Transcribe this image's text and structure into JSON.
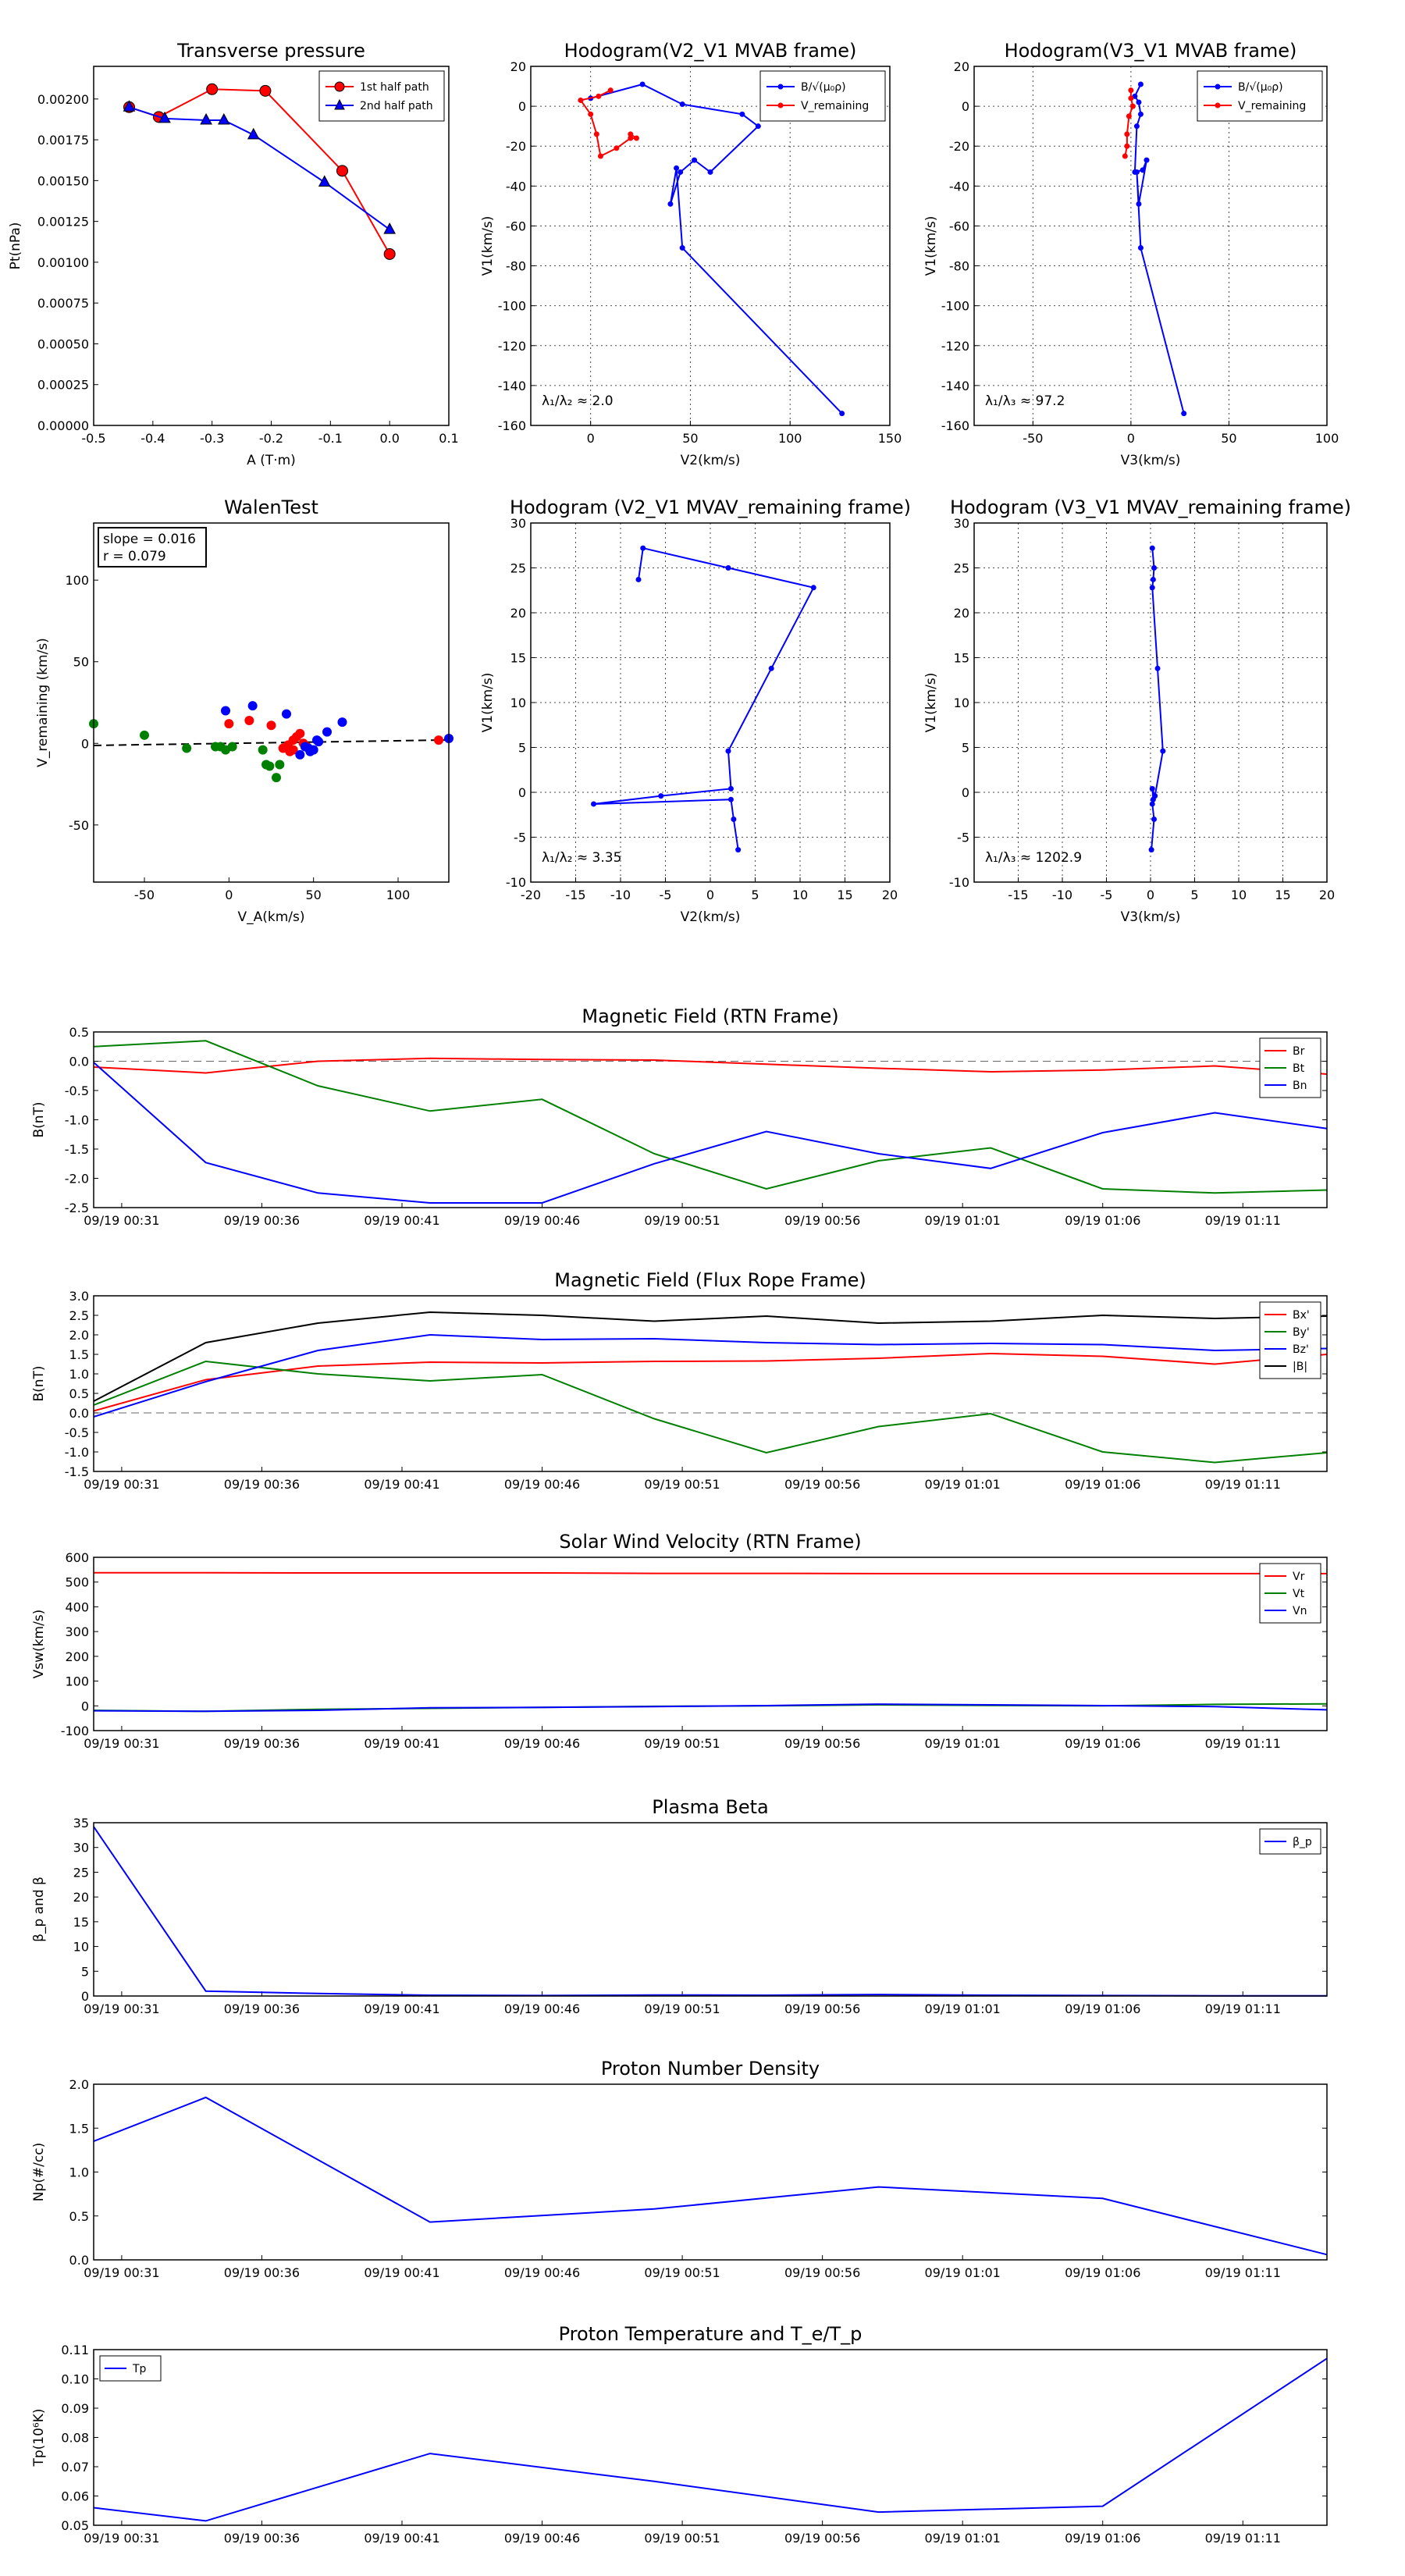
{
  "chart_data": [
    {
      "type": "line",
      "title": "Transverse pressure",
      "xlabel": "A (T·m)",
      "ylabel": "Pt(nPa)",
      "xlim": [
        -0.5,
        0.1
      ],
      "ylim": [
        0,
        0.0022
      ],
      "grid": false,
      "legend": "top-right",
      "x_ticks": [
        "-0.5",
        "-0.4",
        "-0.3",
        "-0.2",
        "-0.1",
        "0.0",
        "0.1"
      ],
      "y_ticks": [
        "0.00000",
        "0.00025",
        "0.00050",
        "0.00075",
        "0.00100",
        "0.00125",
        "0.00150",
        "0.00175",
        "0.00200"
      ],
      "series": [
        {
          "name": "1st half path",
          "color": "#ff0000",
          "marker": "circle",
          "x": [
            -0.44,
            -0.39,
            -0.3,
            -0.21,
            -0.08,
            0.0
          ],
          "y": [
            0.00195,
            0.00189,
            0.00206,
            0.00205,
            0.00156,
            0.00105
          ]
        },
        {
          "name": "2nd half path",
          "color": "#0000ff",
          "marker": "triangle",
          "x": [
            -0.44,
            -0.38,
            -0.31,
            -0.28,
            -0.23,
            -0.11,
            0.0
          ],
          "y": [
            0.00195,
            0.00188,
            0.00187,
            0.00187,
            0.00178,
            0.00149,
            0.0012
          ]
        }
      ]
    },
    {
      "type": "line",
      "title": "Hodogram(V2_V1 MVAB frame)",
      "xlabel": "V2(km/s)",
      "ylabel": "V1(km/s)",
      "xlim": [
        -30,
        150
      ],
      "ylim": [
        -160,
        20
      ],
      "grid": true,
      "legend": "top-right",
      "x_ticks": [
        "0",
        "50",
        "100",
        "150"
      ],
      "y_ticks": [
        "-160",
        "-140",
        "-120",
        "-100",
        "-80",
        "-60",
        "-40",
        "-20",
        "0",
        "20"
      ],
      "annotation": "λ₁/λ₂ ≈ 2.0",
      "series": [
        {
          "name": "B/√(μ₀ρ)",
          "color": "#0000ff",
          "x": [
            0,
            26,
            46,
            76,
            84,
            60,
            52,
            45,
            40,
            43,
            46,
            126
          ],
          "y": [
            4,
            11,
            1,
            -4,
            -10,
            -33,
            -27,
            -33,
            -49,
            -31,
            -71,
            -154
          ]
        },
        {
          "name": "V_remaining",
          "color": "#ff0000",
          "x": [
            10,
            4,
            -5,
            0,
            3,
            5,
            13,
            20,
            23,
            20
          ],
          "y": [
            8,
            5,
            3,
            -4,
            -14,
            -25,
            -21,
            -16,
            -16,
            -14
          ]
        }
      ]
    },
    {
      "type": "line",
      "title": "Hodogram(V3_V1 MVAB frame)",
      "xlabel": "V3(km/s)",
      "ylabel": "V1(km/s)",
      "xlim": [
        -80,
        100
      ],
      "ylim": [
        -160,
        20
      ],
      "grid": true,
      "legend": "top-right",
      "x_ticks": [
        "-50",
        "0",
        "50",
        "100"
      ],
      "y_ticks": [
        "-160",
        "-140",
        "-120",
        "-100",
        "-80",
        "-60",
        "-40",
        "-20",
        "0",
        "20"
      ],
      "annotation": "λ₁/λ₃ ≈ 97.2",
      "series": [
        {
          "name": "B/√(μ₀ρ)",
          "color": "#0000ff",
          "x": [
            5,
            2,
            4,
            5,
            3,
            2,
            6,
            8,
            4,
            3,
            5,
            27
          ],
          "y": [
            11,
            5,
            2,
            -4,
            -10,
            -33,
            -32,
            -27,
            -49,
            -33,
            -71,
            -154
          ]
        },
        {
          "name": "V_remaining",
          "color": "#ff0000",
          "x": [
            0,
            0,
            1,
            -1,
            -2,
            -2,
            -3
          ],
          "y": [
            8,
            4,
            0,
            -5,
            -14,
            -20,
            -25
          ]
        }
      ]
    },
    {
      "type": "scatter",
      "title": "WalenTest",
      "xlabel": "V_A(km/s)",
      "ylabel": "V_remaining (km/s)",
      "xlim": [
        -80,
        130
      ],
      "ylim": [
        -85,
        135
      ],
      "grid": false,
      "x_ticks": [
        "-50",
        "0",
        "50",
        "100"
      ],
      "y_ticks": [
        "-50",
        "0",
        "50",
        "100"
      ],
      "annotation_lines": [
        "slope = 0.016",
        "r = 0.079"
      ],
      "fit_line": {
        "slope": 0.016,
        "intercept": 0
      },
      "series": [
        {
          "color": "#008000",
          "x": [
            -80,
            -50,
            -25,
            -8,
            -2,
            -5,
            2,
            20,
            22,
            28,
            30,
            24
          ],
          "y": [
            12,
            5,
            -3,
            -2,
            -4,
            -2,
            -2,
            -4,
            -13,
            -21,
            -13,
            -14
          ]
        },
        {
          "color": "#ff0000",
          "x": [
            0,
            12,
            25,
            32,
            35,
            38,
            40,
            42,
            44,
            46,
            36,
            38,
            124
          ],
          "y": [
            12,
            14,
            11,
            -3,
            -1,
            2,
            4,
            6,
            0,
            -2,
            -5,
            -4,
            2
          ]
        },
        {
          "color": "#0000ff",
          "x": [
            -2,
            14,
            34,
            52,
            58,
            67,
            45,
            48,
            50,
            42,
            53,
            47,
            130
          ],
          "y": [
            20,
            23,
            18,
            2,
            7,
            13,
            -2,
            -5,
            -4,
            -7,
            1,
            -3,
            3
          ]
        }
      ]
    },
    {
      "type": "line",
      "title": "Hodogram (V2_V1 MVAV_remaining frame)",
      "xlabel": "V2(km/s)",
      "ylabel": "V1(km/s)",
      "xlim": [
        -20,
        20
      ],
      "ylim": [
        -10,
        30
      ],
      "grid": true,
      "x_ticks": [
        "-20",
        "-15",
        "-10",
        "-5",
        "0",
        "5",
        "10",
        "15",
        "20"
      ],
      "y_ticks": [
        "-10",
        "-5",
        "0",
        "5",
        "10",
        "15",
        "20",
        "25",
        "30"
      ],
      "annotation": "λ₁/λ₂ ≈ 3.35",
      "series": [
        {
          "color": "#0000ff",
          "x": [
            -8,
            -7.5,
            2,
            11.5,
            6.8,
            2,
            2.3,
            -5.5,
            -13,
            2.3,
            2.6,
            3.1
          ],
          "y": [
            23.7,
            27.2,
            25,
            22.8,
            13.8,
            4.6,
            0.4,
            -0.4,
            -1.3,
            -0.8,
            -3,
            -6.4
          ]
        }
      ]
    },
    {
      "type": "line",
      "title": "Hodogram (V3_V1 MVAV_remaining frame)",
      "xlabel": "V3(km/s)",
      "ylabel": "V1(km/s)",
      "xlim": [
        -20,
        20
      ],
      "ylim": [
        -10,
        30
      ],
      "grid": true,
      "x_ticks": [
        "-15",
        "-10",
        "-5",
        "0",
        "5",
        "10",
        "15",
        "20"
      ],
      "y_ticks": [
        "-10",
        "-5",
        "0",
        "5",
        "10",
        "15",
        "20",
        "25",
        "30"
      ],
      "annotation": "λ₁/λ₃ ≈ 1202.9",
      "series": [
        {
          "color": "#0000ff",
          "x": [
            0.2,
            0.4,
            0.3,
            0.2,
            0.8,
            1.4,
            0.5,
            0.2,
            0.3,
            0.2,
            0.4,
            0.1
          ],
          "y": [
            27.2,
            25,
            23.7,
            22.8,
            13.8,
            4.6,
            -0.4,
            0.4,
            -0.8,
            -1.3,
            -3,
            -6.4
          ]
        }
      ]
    },
    {
      "type": "line",
      "title": "Magnetic Field (RTN Frame)",
      "ylabel": "B(nT)",
      "ylim": [
        -2.5,
        0.5
      ],
      "zero_line": true,
      "legend": "top-right",
      "x_tick_labels": [
        "09/19 00:31",
        "09/19 00:36",
        "09/19 00:41",
        "09/19 00:46",
        "09/19 00:51",
        "09/19 00:56",
        "09/19 01:01",
        "09/19 01:06",
        "09/19 01:11"
      ],
      "y_ticks": [
        "-2.5",
        "-2.0",
        "-1.5",
        "-1.0",
        "-0.5",
        "0.0",
        "0.5"
      ],
      "x": [
        "00:30",
        "00:34",
        "00:38",
        "00:42",
        "00:46",
        "00:50",
        "00:54",
        "00:58",
        "01:02",
        "01:06",
        "01:10",
        "01:14"
      ],
      "series": [
        {
          "name": "Br",
          "color": "#ff0000",
          "values": [
            -0.1,
            -0.2,
            0.0,
            0.05,
            0.03,
            0.02,
            -0.05,
            -0.12,
            -0.18,
            -0.15,
            -0.08,
            -0.22
          ]
        },
        {
          "name": "Bt",
          "color": "#008000",
          "values": [
            0.25,
            0.35,
            -0.42,
            -0.85,
            -0.65,
            -1.58,
            -2.18,
            -1.7,
            -1.48,
            -2.18,
            -2.25,
            -2.2
          ]
        },
        {
          "name": "Bn",
          "color": "#0000ff",
          "values": [
            -0.02,
            -1.73,
            -2.25,
            -2.42,
            -2.42,
            -1.75,
            -1.2,
            -1.58,
            -1.83,
            -1.22,
            -0.88,
            -1.15
          ]
        }
      ]
    },
    {
      "type": "line",
      "title": "Magnetic Field (Flux Rope Frame)",
      "ylabel": "B(nT)",
      "ylim": [
        -1.5,
        3.0
      ],
      "zero_line": true,
      "legend": "top-right",
      "x_tick_labels": [
        "09/19 00:31",
        "09/19 00:36",
        "09/19 00:41",
        "09/19 00:46",
        "09/19 00:51",
        "09/19 00:56",
        "09/19 01:01",
        "09/19 01:06",
        "09/19 01:11"
      ],
      "y_ticks": [
        "-1.5",
        "-1.0",
        "-0.5",
        "0.0",
        "0.5",
        "1.0",
        "1.5",
        "2.0",
        "2.5",
        "3.0"
      ],
      "x": [
        "00:30",
        "00:34",
        "00:38",
        "00:42",
        "00:46",
        "00:50",
        "00:54",
        "00:58",
        "01:02",
        "01:06",
        "01:10",
        "01:14"
      ],
      "series": [
        {
          "name": "Bx'",
          "color": "#ff0000",
          "values": [
            0.05,
            0.85,
            1.2,
            1.3,
            1.28,
            1.32,
            1.33,
            1.4,
            1.52,
            1.45,
            1.25,
            1.5
          ]
        },
        {
          "name": "By'",
          "color": "#008000",
          "values": [
            0.2,
            1.32,
            1.0,
            0.82,
            0.98,
            -0.15,
            -1.02,
            -0.35,
            -0.02,
            -1.0,
            -1.27,
            -1.02
          ]
        },
        {
          "name": "Bz'",
          "color": "#0000ff",
          "values": [
            -0.1,
            0.8,
            1.6,
            2.0,
            1.88,
            1.9,
            1.8,
            1.75,
            1.78,
            1.75,
            1.6,
            1.65
          ]
        },
        {
          "name": "|B|",
          "color": "#000000",
          "values": [
            0.3,
            1.8,
            2.3,
            2.58,
            2.5,
            2.35,
            2.48,
            2.3,
            2.35,
            2.5,
            2.42,
            2.48
          ]
        }
      ]
    },
    {
      "type": "line",
      "title": "Solar Wind Velocity (RTN Frame)",
      "ylabel": "Vsw(km/s)",
      "ylim": [
        -100,
        600
      ],
      "legend": "top-right",
      "x_tick_labels": [
        "09/19 00:31",
        "09/19 00:36",
        "09/19 00:41",
        "09/19 00:46",
        "09/19 00:51",
        "09/19 00:56",
        "09/19 01:01",
        "09/19 01:06",
        "09/19 01:11"
      ],
      "y_ticks": [
        "-100",
        "0",
        "100",
        "200",
        "300",
        "400",
        "500",
        "600"
      ],
      "x": [
        "00:30",
        "00:34",
        "00:38",
        "00:42",
        "00:46",
        "00:50",
        "00:54",
        "00:58",
        "01:02",
        "01:06",
        "01:10",
        "01:14"
      ],
      "series": [
        {
          "name": "Vr",
          "color": "#ff0000",
          "values": [
            538,
            538,
            537,
            537,
            537,
            535,
            535,
            534,
            534,
            534,
            534,
            534
          ]
        },
        {
          "name": "Vt",
          "color": "#008000",
          "values": [
            -18,
            -22,
            -14,
            -10,
            -6,
            -2,
            0,
            4,
            2,
            0,
            6,
            8
          ]
        },
        {
          "name": "Vn",
          "color": "#0000ff",
          "values": [
            -20,
            -22,
            -18,
            -8,
            -6,
            -3,
            1,
            7,
            4,
            1,
            -3,
            -16
          ]
        }
      ]
    },
    {
      "type": "line",
      "title": "Plasma Beta",
      "ylabel": "β_p and β",
      "ylim": [
        0,
        35
      ],
      "legend": "top-right",
      "x_tick_labels": [
        "09/19 00:31",
        "09/19 00:36",
        "09/19 00:41",
        "09/19 00:46",
        "09/19 00:51",
        "09/19 00:56",
        "09/19 01:01",
        "09/19 01:06",
        "09/19 01:11"
      ],
      "y_ticks": [
        "0",
        "5",
        "10",
        "15",
        "20",
        "25",
        "30",
        "35"
      ],
      "x": [
        "00:30",
        "00:34",
        "00:38",
        "00:42",
        "00:46",
        "00:50",
        "00:54",
        "00:58",
        "01:02",
        "01:06",
        "01:10",
        "01:14"
      ],
      "series": [
        {
          "name": "β_p",
          "color": "#0000ff",
          "values": [
            34.2,
            1.0,
            0.5,
            0.15,
            0.1,
            0.2,
            0.15,
            0.3,
            0.15,
            0.1,
            0.05,
            0.05
          ]
        }
      ]
    },
    {
      "type": "line",
      "title": "Proton Number Density",
      "ylabel": "Np(#/cc)",
      "ylim": [
        0,
        2.0
      ],
      "x_tick_labels": [
        "09/19 00:31",
        "09/19 00:36",
        "09/19 00:41",
        "09/19 00:46",
        "09/19 00:51",
        "09/19 00:56",
        "09/19 01:01",
        "09/19 01:06",
        "09/19 01:11"
      ],
      "y_ticks": [
        "0.0",
        "0.5",
        "1.0",
        "1.5",
        "2.0"
      ],
      "x": [
        "00:30",
        "00:34",
        "00:42",
        "00:50",
        "00:58",
        "01:06",
        "01:14"
      ],
      "series": [
        {
          "color": "#0000ff",
          "values": [
            1.35,
            1.85,
            0.43,
            0.58,
            0.83,
            0.7,
            0.06
          ]
        }
      ]
    },
    {
      "type": "line",
      "title": "Proton Temperature and T_e/T_p",
      "ylabel": "Tp(10⁶K)",
      "ylim": [
        0.05,
        0.11
      ],
      "legend": "top-left",
      "x_tick_labels": [
        "09/19 00:31",
        "09/19 00:36",
        "09/19 00:41",
        "09/19 00:46",
        "09/19 00:51",
        "09/19 00:56",
        "09/19 01:01",
        "09/19 01:06",
        "09/19 01:11"
      ],
      "y_ticks": [
        "0.05",
        "0.06",
        "0.07",
        "0.08",
        "0.09",
        "0.10",
        "0.11"
      ],
      "x": [
        "00:30",
        "00:34",
        "00:42",
        "00:50",
        "00:58",
        "01:06",
        "01:14"
      ],
      "series": [
        {
          "name": "Tp",
          "color": "#0000ff",
          "values": [
            0.056,
            0.0515,
            0.0745,
            0.065,
            0.0545,
            0.0565,
            0.107
          ]
        }
      ]
    }
  ]
}
